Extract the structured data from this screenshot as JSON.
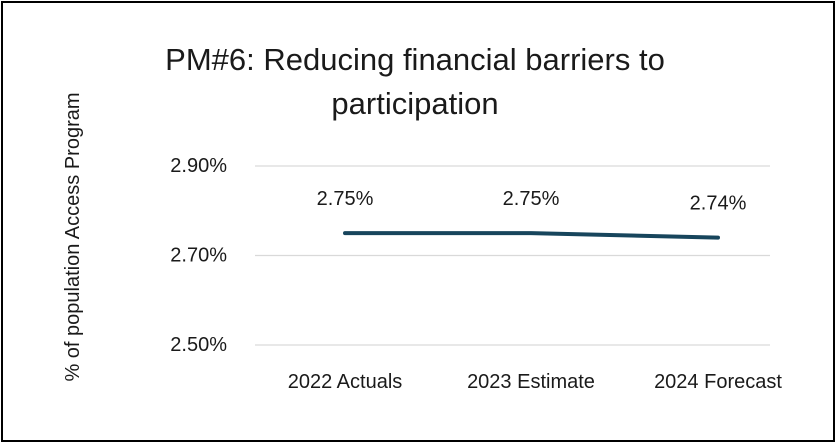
{
  "chart_data": {
    "type": "line",
    "title": "PM#6: Reducing financial barriers to participation",
    "xlabel": "",
    "ylabel": "% of population  Access Program",
    "categories": [
      "2022 Actuals",
      "2023 Estimate",
      "2024 Forecast"
    ],
    "series": [
      {
        "values": [
          2.75,
          2.75,
          2.74
        ],
        "labels": [
          "2.75%",
          "2.75%",
          "2.74%"
        ],
        "color": "#17455c"
      }
    ],
    "ylim": [
      2.5,
      2.9
    ],
    "yticks": [
      2.5,
      2.7,
      2.9
    ],
    "ytick_labels": [
      "2.50%",
      "2.70%",
      "2.90%"
    ],
    "grid": true,
    "legend": "none",
    "gridline_color": "#d9d9d9"
  }
}
